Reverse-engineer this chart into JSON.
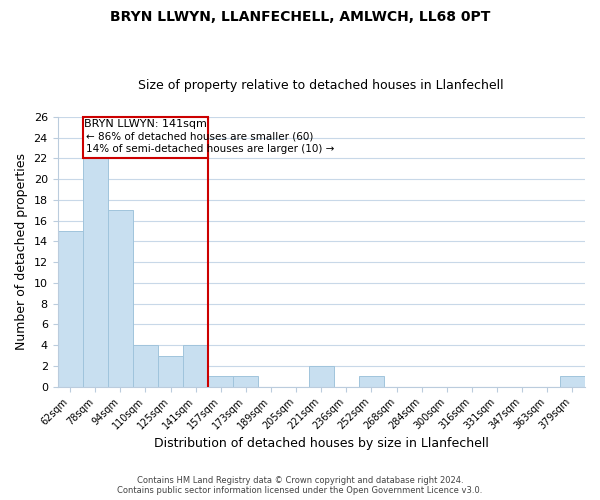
{
  "title1": "BRYN LLWYN, LLANFECHELL, AMLWCH, LL68 0PT",
  "title2": "Size of property relative to detached houses in Llanfechell",
  "xlabel": "Distribution of detached houses by size in Llanfechell",
  "ylabel": "Number of detached properties",
  "bin_labels": [
    "62sqm",
    "78sqm",
    "94sqm",
    "110sqm",
    "125sqm",
    "141sqm",
    "157sqm",
    "173sqm",
    "189sqm",
    "205sqm",
    "221sqm",
    "236sqm",
    "252sqm",
    "268sqm",
    "284sqm",
    "300sqm",
    "316sqm",
    "331sqm",
    "347sqm",
    "363sqm",
    "379sqm"
  ],
  "bar_heights": [
    15,
    22,
    17,
    4,
    3,
    4,
    1,
    1,
    0,
    0,
    2,
    0,
    1,
    0,
    0,
    0,
    0,
    0,
    0,
    0,
    1
  ],
  "bar_color": "#c8dff0",
  "bar_edge_color": "#a0c4dc",
  "reference_line_x": 5.5,
  "reference_line_color": "#cc0000",
  "ylim": [
    0,
    26
  ],
  "yticks": [
    0,
    2,
    4,
    6,
    8,
    10,
    12,
    14,
    16,
    18,
    20,
    22,
    24,
    26
  ],
  "annotation_title": "BRYN LLWYN: 141sqm",
  "annotation_line1": "← 86% of detached houses are smaller (60)",
  "annotation_line2": "14% of semi-detached houses are larger (10) →",
  "annotation_box_color": "#cc0000",
  "footer1": "Contains HM Land Registry data © Crown copyright and database right 2024.",
  "footer2": "Contains public sector information licensed under the Open Government Licence v3.0.",
  "background_color": "#ffffff",
  "grid_color": "#c8d8e8"
}
